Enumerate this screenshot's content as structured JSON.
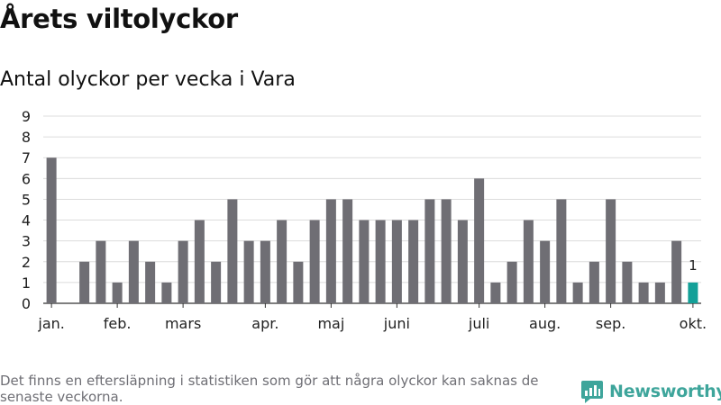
{
  "header": {
    "title": "Årets viltolyckor",
    "subtitle": "Antal olyckor per vecka i Vara"
  },
  "footer": {
    "note": "Det finns en eftersläpning i statistiken som gör att några olyckor kan saknas de senaste veckorna.",
    "brand": "Newsworthy"
  },
  "colors": {
    "bar": "#6f6e74",
    "highlight": "#13a098",
    "grid": "#dcdcdc",
    "axis": "#333333"
  },
  "chart_data": {
    "type": "bar",
    "title": "Antal olyckor per vecka i Vara",
    "xlabel": "",
    "ylabel": "",
    "ylim": [
      0,
      9
    ],
    "yticks": [
      0,
      1,
      2,
      3,
      4,
      5,
      6,
      7,
      8,
      9
    ],
    "grid": true,
    "weeks": [
      1,
      2,
      3,
      4,
      5,
      6,
      7,
      8,
      9,
      10,
      11,
      12,
      13,
      14,
      15,
      16,
      17,
      18,
      19,
      20,
      21,
      22,
      23,
      24,
      25,
      26,
      27,
      28,
      29,
      30,
      31,
      32,
      33,
      34,
      35,
      36,
      37,
      38,
      39,
      40
    ],
    "values": [
      7,
      0,
      2,
      3,
      1,
      3,
      2,
      1,
      3,
      4,
      2,
      5,
      3,
      3,
      4,
      2,
      4,
      5,
      5,
      4,
      4,
      4,
      4,
      5,
      5,
      4,
      6,
      1,
      2,
      4,
      3,
      5,
      1,
      2,
      5,
      2,
      1,
      1,
      3,
      1
    ],
    "highlight_index": 39,
    "highlight_label": "1",
    "month_labels": [
      {
        "label": "jan.",
        "week": 1
      },
      {
        "label": "feb.",
        "week": 5
      },
      {
        "label": "mars",
        "week": 9
      },
      {
        "label": "apr.",
        "week": 14
      },
      {
        "label": "maj",
        "week": 18
      },
      {
        "label": "juni",
        "week": 22
      },
      {
        "label": "juli",
        "week": 27
      },
      {
        "label": "aug.",
        "week": 31
      },
      {
        "label": "sep.",
        "week": 35
      },
      {
        "label": "okt.",
        "week": 40
      }
    ]
  }
}
